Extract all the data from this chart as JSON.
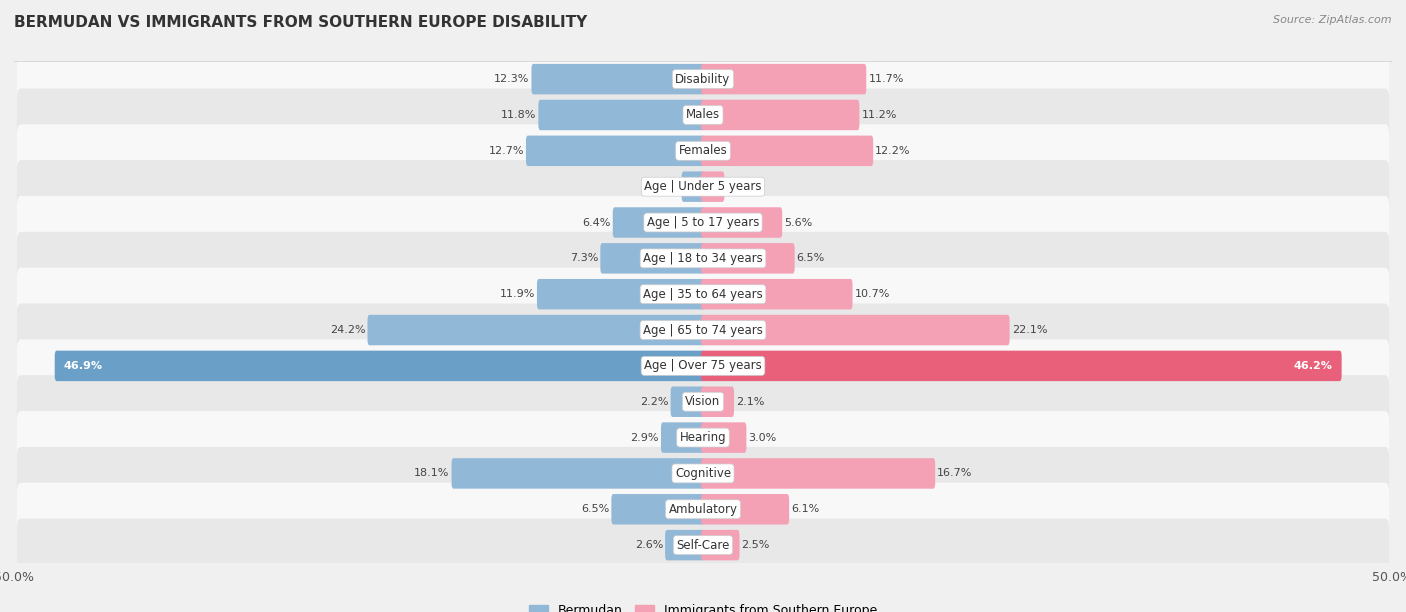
{
  "title": "BERMUDAN VS IMMIGRANTS FROM SOUTHERN EUROPE DISABILITY",
  "source": "Source: ZipAtlas.com",
  "categories": [
    "Disability",
    "Males",
    "Females",
    "Age | Under 5 years",
    "Age | 5 to 17 years",
    "Age | 18 to 34 years",
    "Age | 35 to 64 years",
    "Age | 65 to 74 years",
    "Age | Over 75 years",
    "Vision",
    "Hearing",
    "Cognitive",
    "Ambulatory",
    "Self-Care"
  ],
  "bermudan": [
    12.3,
    11.8,
    12.7,
    1.4,
    6.4,
    7.3,
    11.9,
    24.2,
    46.9,
    2.2,
    2.9,
    18.1,
    6.5,
    2.6
  ],
  "immigrants": [
    11.7,
    11.2,
    12.2,
    1.4,
    5.6,
    6.5,
    10.7,
    22.1,
    46.2,
    2.1,
    3.0,
    16.7,
    6.1,
    2.5
  ],
  "bermudan_color": "#92b8d8",
  "immigrants_color": "#f4a0b5",
  "bermudan_highlight": "#6a9fc8",
  "immigrants_highlight": "#e8607a",
  "bermudan_label": "Bermudan",
  "immigrants_label": "Immigrants from Southern Europe",
  "axis_limit": 50.0,
  "background_color": "#f0f0f0",
  "row_bg_light": "#f8f8f8",
  "row_bg_dark": "#e8e8e8",
  "title_fontsize": 11,
  "label_fontsize": 8.5,
  "value_fontsize": 8.0
}
